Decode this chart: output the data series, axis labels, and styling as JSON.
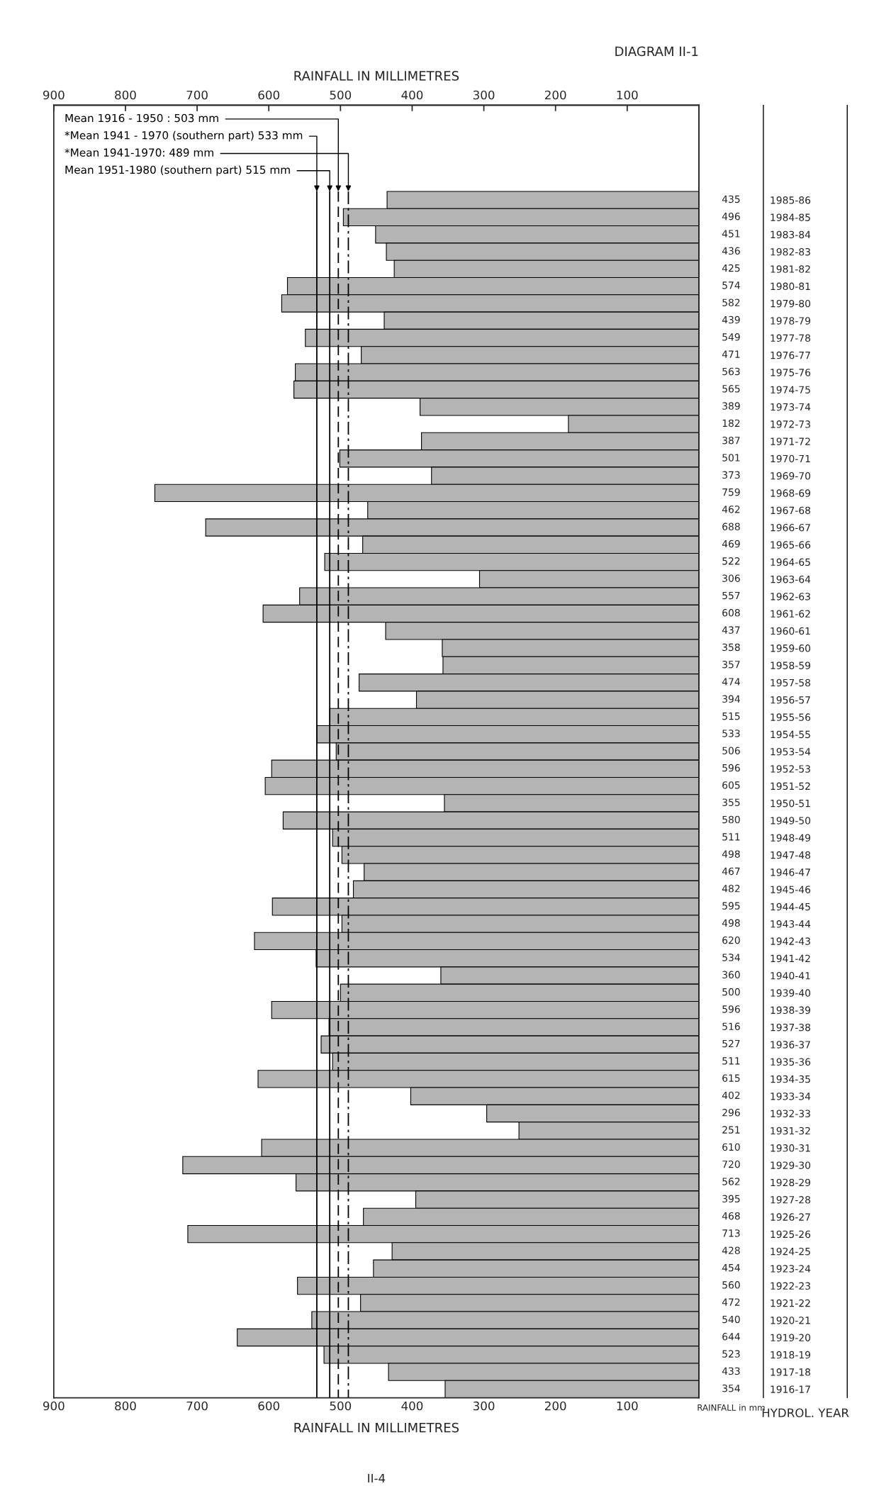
{
  "chart_data": {
    "type": "bar",
    "orientation": "horizontal",
    "title": "DIAGRAM II-1",
    "xlabel": "RAINFALL IN MILLIMETRES",
    "x2label": "RAINFALL IN MILLIMETRES",
    "ylabel": "HYDROL. YEAR",
    "categories": [
      "1985-86",
      "1984-85",
      "1983-84",
      "1982-83",
      "1981-82",
      "1980-81",
      "1979-80",
      "1978-79",
      "1977-78",
      "1976-77",
      "1975-76",
      "1974-75",
      "1973-74",
      "1972-73",
      "1971-72",
      "1970-71",
      "1969-70",
      "1968-69",
      "1967-68",
      "1966-67",
      "1965-66",
      "1964-65",
      "1963-64",
      "1962-63",
      "1961-62",
      "1960-61",
      "1959-60",
      "1958-59",
      "1957-58",
      "1956-57",
      "1955-56",
      "1954-55",
      "1953-54",
      "1952-53",
      "1951-52",
      "1950-51",
      "1949-50",
      "1948-49",
      "1947-48",
      "1946-47",
      "1945-46",
      "1944-45",
      "1943-44",
      "1942-43",
      "1941-42",
      "1940-41",
      "1939-40",
      "1938-39",
      "1937-38",
      "1936-37",
      "1935-36",
      "1934-35",
      "1933-34",
      "1932-33",
      "1931-32",
      "1930-31",
      "1929-30",
      "1928-29",
      "1927-28",
      "1926-27",
      "1925-26",
      "1924-25",
      "1923-24",
      "1922-23",
      "1921-22",
      "1920-21",
      "1919-20",
      "1918-19",
      "1917-18",
      "1916-17"
    ],
    "values": [
      435,
      496,
      451,
      436,
      425,
      574,
      582,
      439,
      549,
      471,
      563,
      565,
      389,
      182,
      387,
      501,
      373,
      759,
      462,
      688,
      469,
      522,
      306,
      557,
      608,
      437,
      358,
      357,
      474,
      394,
      515,
      533,
      506,
      596,
      605,
      355,
      580,
      511,
      498,
      467,
      482,
      595,
      498,
      620,
      534,
      360,
      500,
      596,
      516,
      527,
      511,
      615,
      402,
      296,
      251,
      610,
      720,
      562,
      395,
      468,
      713,
      428,
      454,
      560,
      472,
      540,
      644,
      523,
      433,
      354
    ],
    "color": "#b4b4b4",
    "data_labels": true,
    "xlim": [
      900,
      0
    ],
    "xticks": [
      900,
      800,
      700,
      600,
      500,
      400,
      300,
      200,
      100
    ],
    "x2lim": [
      900,
      0
    ],
    "x2ticks": [
      900,
      800,
      700,
      600,
      500,
      400,
      300,
      200,
      100
    ],
    "ref_lines": [
      {
        "axis": "x",
        "value": 503,
        "label": "Mean 1916 - 1950 : 503 mm",
        "line_style": "dashed"
      },
      {
        "axis": "x",
        "value": 533,
        "label": "*Mean 1941 - 1970 (southern part) 533 mm",
        "line_style": "solid"
      },
      {
        "axis": "x",
        "value": 489,
        "label": "*Mean 1941-1970: 489 mm",
        "line_style": "dashdot"
      },
      {
        "axis": "x",
        "value": 515,
        "label": "Mean 1951-1980 (southern part) 515 mm",
        "line_style": "solid"
      }
    ],
    "annotations": [
      "RAINFALL in mm",
      "II-4"
    ]
  }
}
